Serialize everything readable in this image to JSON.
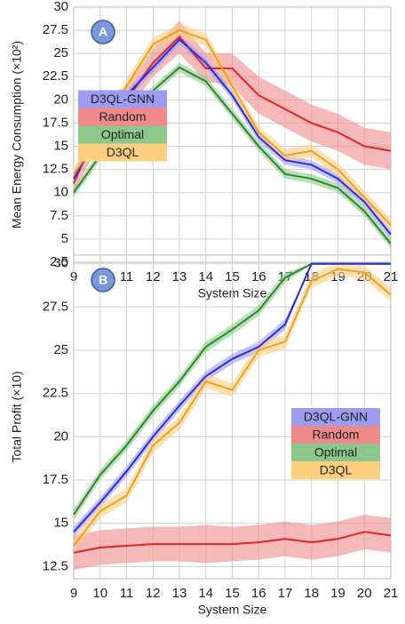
{
  "chart_data": [
    {
      "type": "line",
      "label": "A",
      "xlabel": "System Size",
      "ylabel": "Mean Energy Consumption (×10²)",
      "x": [
        9,
        10,
        11,
        12,
        13,
        14,
        15,
        16,
        17,
        18,
        19,
        20,
        21
      ],
      "xlim": [
        9,
        21
      ],
      "xticks": [
        9,
        10,
        11,
        12,
        13,
        14,
        15,
        16,
        17,
        18,
        19,
        20,
        21
      ],
      "ylim": [
        2.5,
        30
      ],
      "yticks": [
        2.5,
        5,
        7.5,
        10,
        12.5,
        15,
        17.5,
        20,
        22.5,
        25,
        27.5,
        30
      ],
      "grid": true,
      "legend": "center left",
      "series": [
        {
          "name": "D3QL-GNN",
          "color": "#2b2be0",
          "band_color": "#9c9cf2",
          "values": [
            11.5,
            16.5,
            20.5,
            23.5,
            26.5,
            24,
            20.5,
            16,
            13.5,
            13,
            11.5,
            9,
            5.5
          ],
          "lower": [
            11,
            16,
            20,
            23,
            26,
            23.5,
            20,
            15.5,
            13,
            12.5,
            11,
            8.5,
            5
          ],
          "upper": [
            12,
            17,
            21,
            24,
            27,
            24.5,
            21,
            16.5,
            14,
            13.5,
            12,
            9.5,
            6
          ]
        },
        {
          "name": "Random",
          "color": "#e02424",
          "band_color": "#f08a8a",
          "values": [
            11,
            17.5,
            20,
            24,
            26.8,
            23.4,
            23.4,
            20.5,
            19,
            17.5,
            16.5,
            15,
            14.5
          ],
          "lower": [
            10,
            15.5,
            18.5,
            22.5,
            25,
            22,
            21.5,
            18.5,
            17,
            15.5,
            14.5,
            13,
            12.5
          ],
          "upper": [
            12,
            20,
            21.5,
            25.5,
            28.5,
            25,
            25,
            22.5,
            21,
            19.5,
            18.5,
            17,
            16.5
          ]
        },
        {
          "name": "Optimal",
          "color": "#2a8a2a",
          "band_color": "#8cc88c",
          "values": [
            10,
            14,
            18,
            21,
            23.5,
            22,
            18.5,
            15,
            12,
            11.5,
            10.5,
            8,
            4.5
          ],
          "lower": [
            9.5,
            13.5,
            17.5,
            20.5,
            23,
            21.5,
            18,
            14.5,
            11.5,
            11,
            10,
            7.5,
            4
          ],
          "upper": [
            10.5,
            14.5,
            18.5,
            21.5,
            24,
            22.5,
            19,
            15.5,
            12.5,
            12,
            11,
            8.5,
            5
          ]
        },
        {
          "name": "D3QL",
          "color": "#f0a020",
          "band_color": "#ffcf80",
          "values": [
            12,
            16,
            21.5,
            26,
            27.5,
            26.5,
            21.5,
            16.5,
            14,
            14.5,
            12.5,
            9.5,
            6.5
          ],
          "lower": [
            11.3,
            15.3,
            20.8,
            25.3,
            26.8,
            25.8,
            20.8,
            15.8,
            13.3,
            13.8,
            11.8,
            8.8,
            5.8
          ],
          "upper": [
            12.7,
            16.7,
            22.2,
            26.7,
            28.2,
            27.2,
            22.2,
            17.2,
            14.7,
            15.2,
            13.2,
            10.2,
            7.2
          ]
        }
      ]
    },
    {
      "type": "line",
      "label": "B",
      "xlabel": "System Size",
      "ylabel": "Total Profit (×10)",
      "x": [
        9,
        10,
        11,
        12,
        13,
        14,
        15,
        16,
        17,
        18,
        19,
        20,
        21
      ],
      "xlim": [
        9,
        21
      ],
      "xticks": [
        9,
        10,
        11,
        12,
        13,
        14,
        15,
        16,
        17,
        18,
        19,
        20,
        21
      ],
      "ylim": [
        11.8,
        30.5
      ],
      "yticks": [
        12.5,
        15,
        17.5,
        20,
        22.5,
        25,
        27.5,
        30
      ],
      "grid": true,
      "legend": "center right",
      "series": [
        {
          "name": "D3QL-GNN",
          "color": "#2b2be0",
          "band_color": "#9c9cf2",
          "values": [
            14.5,
            16.2,
            18,
            20,
            21.8,
            23.5,
            24.5,
            25.2,
            26.5,
            30,
            30,
            30,
            30
          ],
          "lower": [
            14.2,
            15.9,
            17.7,
            19.7,
            21.5,
            23.2,
            24.2,
            24.9,
            26.2,
            30,
            30,
            30,
            30
          ],
          "upper": [
            14.8,
            16.5,
            18.3,
            20.3,
            22.1,
            23.8,
            24.8,
            25.5,
            26.8,
            30,
            30,
            30,
            30
          ]
        },
        {
          "name": "Random",
          "color": "#e02424",
          "band_color": "#f08a8a",
          "values": [
            13.3,
            13.6,
            13.7,
            13.8,
            13.8,
            13.8,
            13.8,
            13.9,
            14.1,
            13.9,
            14.1,
            14.5,
            14.3
          ],
          "lower": [
            12.3,
            12.6,
            12.7,
            12.8,
            12.8,
            12.7,
            12.8,
            12.9,
            13.1,
            12.9,
            13.1,
            13.5,
            13.3
          ],
          "upper": [
            14.3,
            14.6,
            14.7,
            14.8,
            14.8,
            14.9,
            14.8,
            14.9,
            15.1,
            14.9,
            15.1,
            15.5,
            15.3
          ]
        },
        {
          "name": "Optimal",
          "color": "#2a8a2a",
          "band_color": "#8cc88c",
          "values": [
            15.5,
            17.8,
            19.5,
            21.5,
            23.2,
            25.2,
            26.2,
            27.3,
            29.2,
            30,
            30,
            30,
            30
          ],
          "lower": [
            15.2,
            17.5,
            19.2,
            21.2,
            22.9,
            24.9,
            25.9,
            27,
            28.9,
            30,
            30,
            30,
            30
          ],
          "upper": [
            15.8,
            18.1,
            19.8,
            21.8,
            23.5,
            25.5,
            26.5,
            27.6,
            29.5,
            30,
            30,
            30,
            30
          ]
        },
        {
          "name": "D3QL",
          "color": "#f0a020",
          "band_color": "#ffcf80",
          "values": [
            13.7,
            15.7,
            16.6,
            19.5,
            20.8,
            23.2,
            22.7,
            25,
            25.5,
            29,
            29.7,
            29.5,
            28.2
          ],
          "lower": [
            13.3,
            15.3,
            16.2,
            19.1,
            20.4,
            22.8,
            22.3,
            24.6,
            25.1,
            28.6,
            29.3,
            29.1,
            27.8
          ],
          "upper": [
            14.1,
            16.1,
            17,
            19.9,
            21.2,
            23.6,
            23.1,
            25.4,
            25.9,
            29.4,
            30.1,
            29.9,
            28.6
          ]
        }
      ]
    }
  ]
}
